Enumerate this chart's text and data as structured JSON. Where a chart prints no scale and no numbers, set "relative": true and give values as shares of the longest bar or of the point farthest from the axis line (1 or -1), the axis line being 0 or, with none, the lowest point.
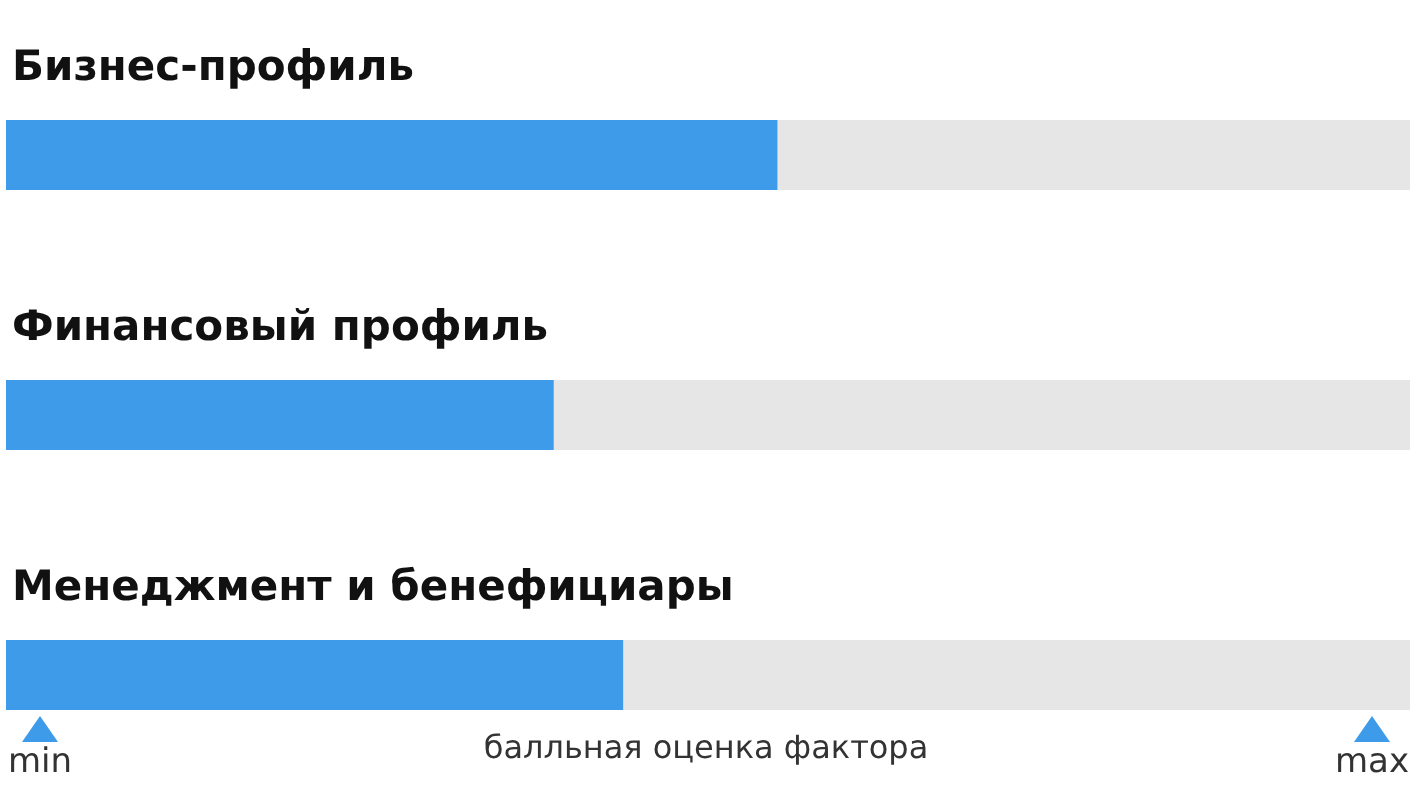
{
  "chart_data": {
    "type": "bar",
    "orientation": "horizontal",
    "relative": true,
    "categories": [
      "Бизнес-профиль",
      "Финансовый профиль",
      "Менеджмент и бенефициары"
    ],
    "values": [
      1,
      0.71,
      0.8
    ],
    "color": "#3d9be9",
    "xlabel": "балльная оценка фактора",
    "annotations": [
      "min",
      "max"
    ]
  }
}
